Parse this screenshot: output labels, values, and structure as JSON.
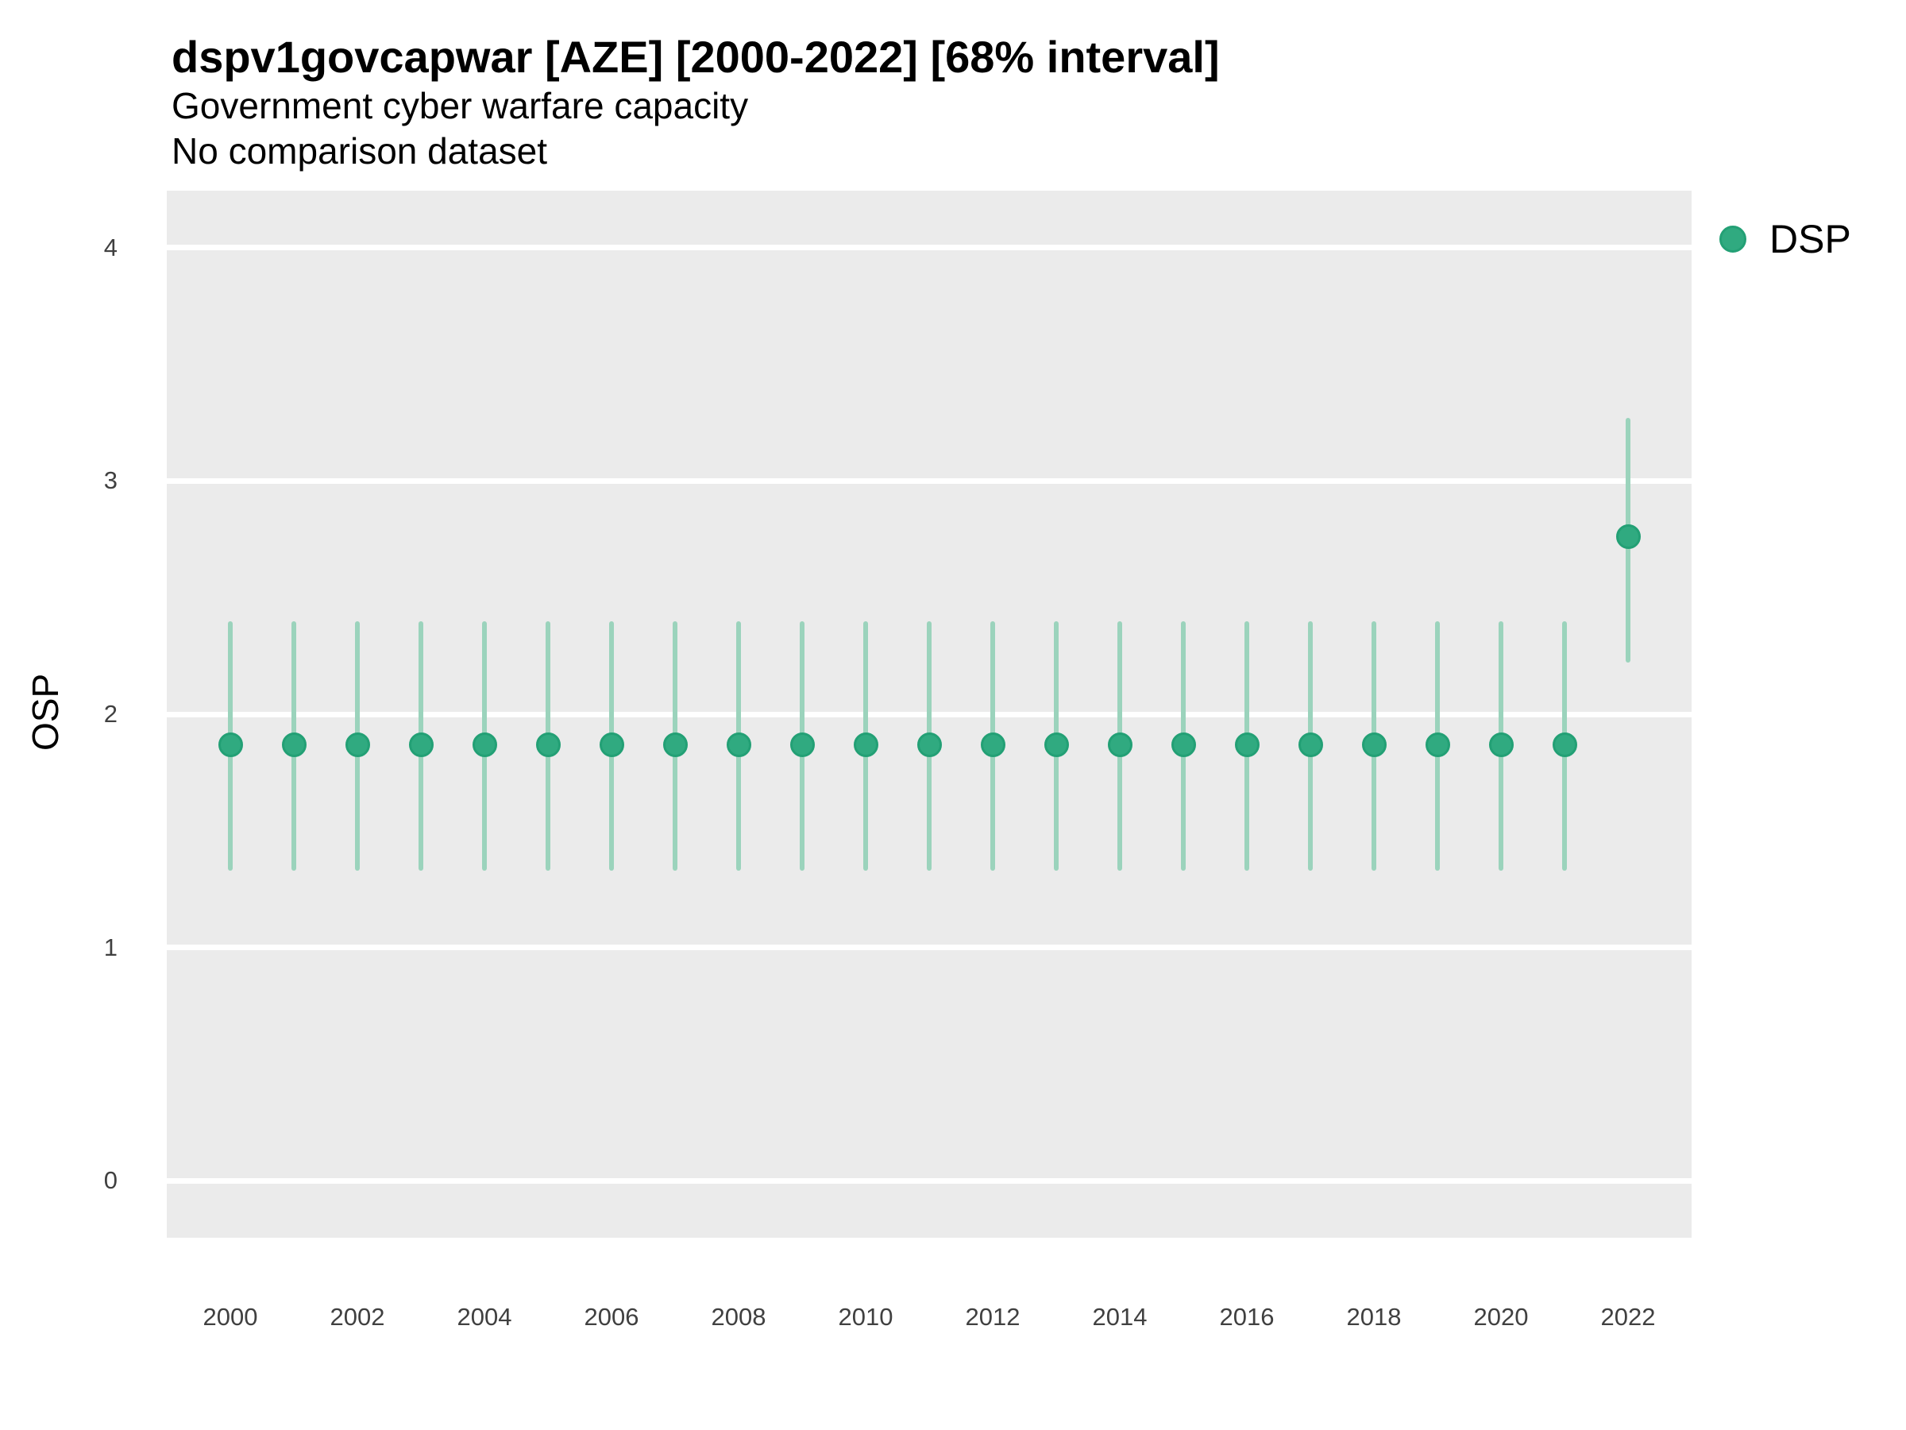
{
  "header": {
    "title": "dspv1govcapwar [AZE] [2000-2022] [68% interval]",
    "subtitle_line1": "Government cyber warfare capacity",
    "subtitle_line2": "No comparison dataset"
  },
  "legend": {
    "label": "DSP",
    "position": "right"
  },
  "colors": {
    "point_fill": "#30AA80",
    "point_stroke": "#23A075",
    "errorbar": "#9BD3BC",
    "panel_bg": "#EBEBEB",
    "gridline": "#FFFFFF",
    "tick_text": "#404040",
    "text": "#000000"
  },
  "chart_data": {
    "type": "scatter",
    "subtype": "pointrange",
    "title": "dspv1govcapwar [AZE] [2000-2022] [68% interval]",
    "subtitle": [
      "Government cyber warfare capacity",
      "No comparison dataset"
    ],
    "xlabel": "",
    "ylabel": "OSP",
    "interval_level": "68%",
    "legend_position": "right",
    "grid": "major-horizontal-only",
    "x": [
      2000,
      2001,
      2002,
      2003,
      2004,
      2005,
      2006,
      2007,
      2008,
      2009,
      2010,
      2011,
      2012,
      2013,
      2014,
      2015,
      2016,
      2017,
      2018,
      2019,
      2020,
      2021,
      2022
    ],
    "series": [
      {
        "name": "DSP",
        "estimates": [
          1.87,
          1.87,
          1.87,
          1.87,
          1.87,
          1.87,
          1.87,
          1.87,
          1.87,
          1.87,
          1.87,
          1.87,
          1.87,
          1.87,
          1.87,
          1.87,
          1.87,
          1.87,
          1.87,
          1.87,
          1.87,
          1.87,
          2.76
        ],
        "interval_low": [
          1.33,
          1.33,
          1.33,
          1.33,
          1.33,
          1.33,
          1.33,
          1.33,
          1.33,
          1.33,
          1.33,
          1.33,
          1.33,
          1.33,
          1.33,
          1.33,
          1.33,
          1.33,
          1.33,
          1.33,
          1.33,
          1.33,
          2.22
        ],
        "interval_high": [
          2.4,
          2.4,
          2.4,
          2.4,
          2.4,
          2.4,
          2.4,
          2.4,
          2.4,
          2.4,
          2.4,
          2.4,
          2.4,
          2.4,
          2.4,
          2.4,
          2.4,
          2.4,
          2.4,
          2.4,
          2.4,
          2.4,
          3.27
        ]
      }
    ],
    "x_ticks": [
      2000,
      2002,
      2004,
      2006,
      2008,
      2010,
      2012,
      2014,
      2016,
      2018,
      2020,
      2022
    ],
    "y_ticks": [
      0,
      1,
      2,
      3,
      4
    ],
    "ylim": [
      -0.245,
      4.245
    ]
  }
}
